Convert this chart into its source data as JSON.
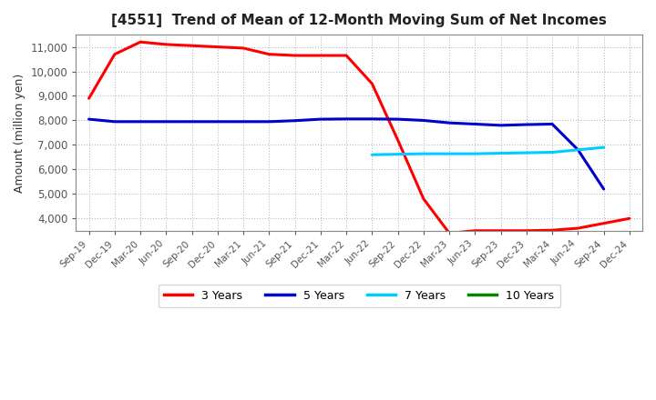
{
  "title": "[4551]  Trend of Mean of 12-Month Moving Sum of Net Incomes",
  "ylabel": "Amount (million yen)",
  "background_color": "#ffffff",
  "plot_bg_color": "#ffffff",
  "grid_color": "#aaaacc",
  "ylim": [
    3500,
    11500
  ],
  "yticks": [
    4000,
    5000,
    6000,
    7000,
    8000,
    9000,
    10000,
    11000
  ],
  "x_labels": [
    "Sep-19",
    "Dec-19",
    "Mar-20",
    "Jun-20",
    "Sep-20",
    "Dec-20",
    "Mar-21",
    "Jun-21",
    "Sep-21",
    "Dec-21",
    "Mar-22",
    "Jun-22",
    "Sep-22",
    "Dec-22",
    "Mar-23",
    "Jun-23",
    "Sep-23",
    "Dec-23",
    "Mar-24",
    "Jun-24",
    "Sep-24",
    "Dec-24"
  ],
  "series": {
    "3 Years": {
      "color": "#ff0000",
      "linewidth": 2.2,
      "values": [
        8900,
        10700,
        11200,
        11100,
        11050,
        11000,
        10950,
        10700,
        10650,
        10650,
        10650,
        9500,
        7200,
        4800,
        3400,
        3500,
        3500,
        3500,
        3520,
        3600,
        3800,
        4000
      ]
    },
    "5 Years": {
      "color": "#0000cc",
      "linewidth": 2.2,
      "values": [
        8050,
        7950,
        7950,
        7950,
        7950,
        7950,
        7950,
        7950,
        7990,
        8050,
        8060,
        8060,
        8050,
        8000,
        7900,
        7850,
        7800,
        7830,
        7850,
        6800,
        5200,
        null
      ]
    },
    "7 Years": {
      "color": "#00ccff",
      "linewidth": 2.2,
      "values": [
        null,
        null,
        null,
        null,
        null,
        null,
        null,
        null,
        null,
        null,
        null,
        6600,
        6620,
        6640,
        6640,
        6640,
        6660,
        6680,
        6700,
        6800,
        6900,
        null
      ]
    },
    "10 Years": {
      "color": "#008800",
      "linewidth": 2.2,
      "values": [
        null,
        null,
        null,
        null,
        null,
        null,
        null,
        null,
        null,
        null,
        null,
        null,
        null,
        null,
        null,
        null,
        null,
        null,
        null,
        null,
        null,
        null
      ]
    }
  },
  "legend": {
    "labels": [
      "3 Years",
      "5 Years",
      "7 Years",
      "10 Years"
    ],
    "colors": [
      "#ff0000",
      "#0000cc",
      "#00ccff",
      "#008800"
    ]
  }
}
